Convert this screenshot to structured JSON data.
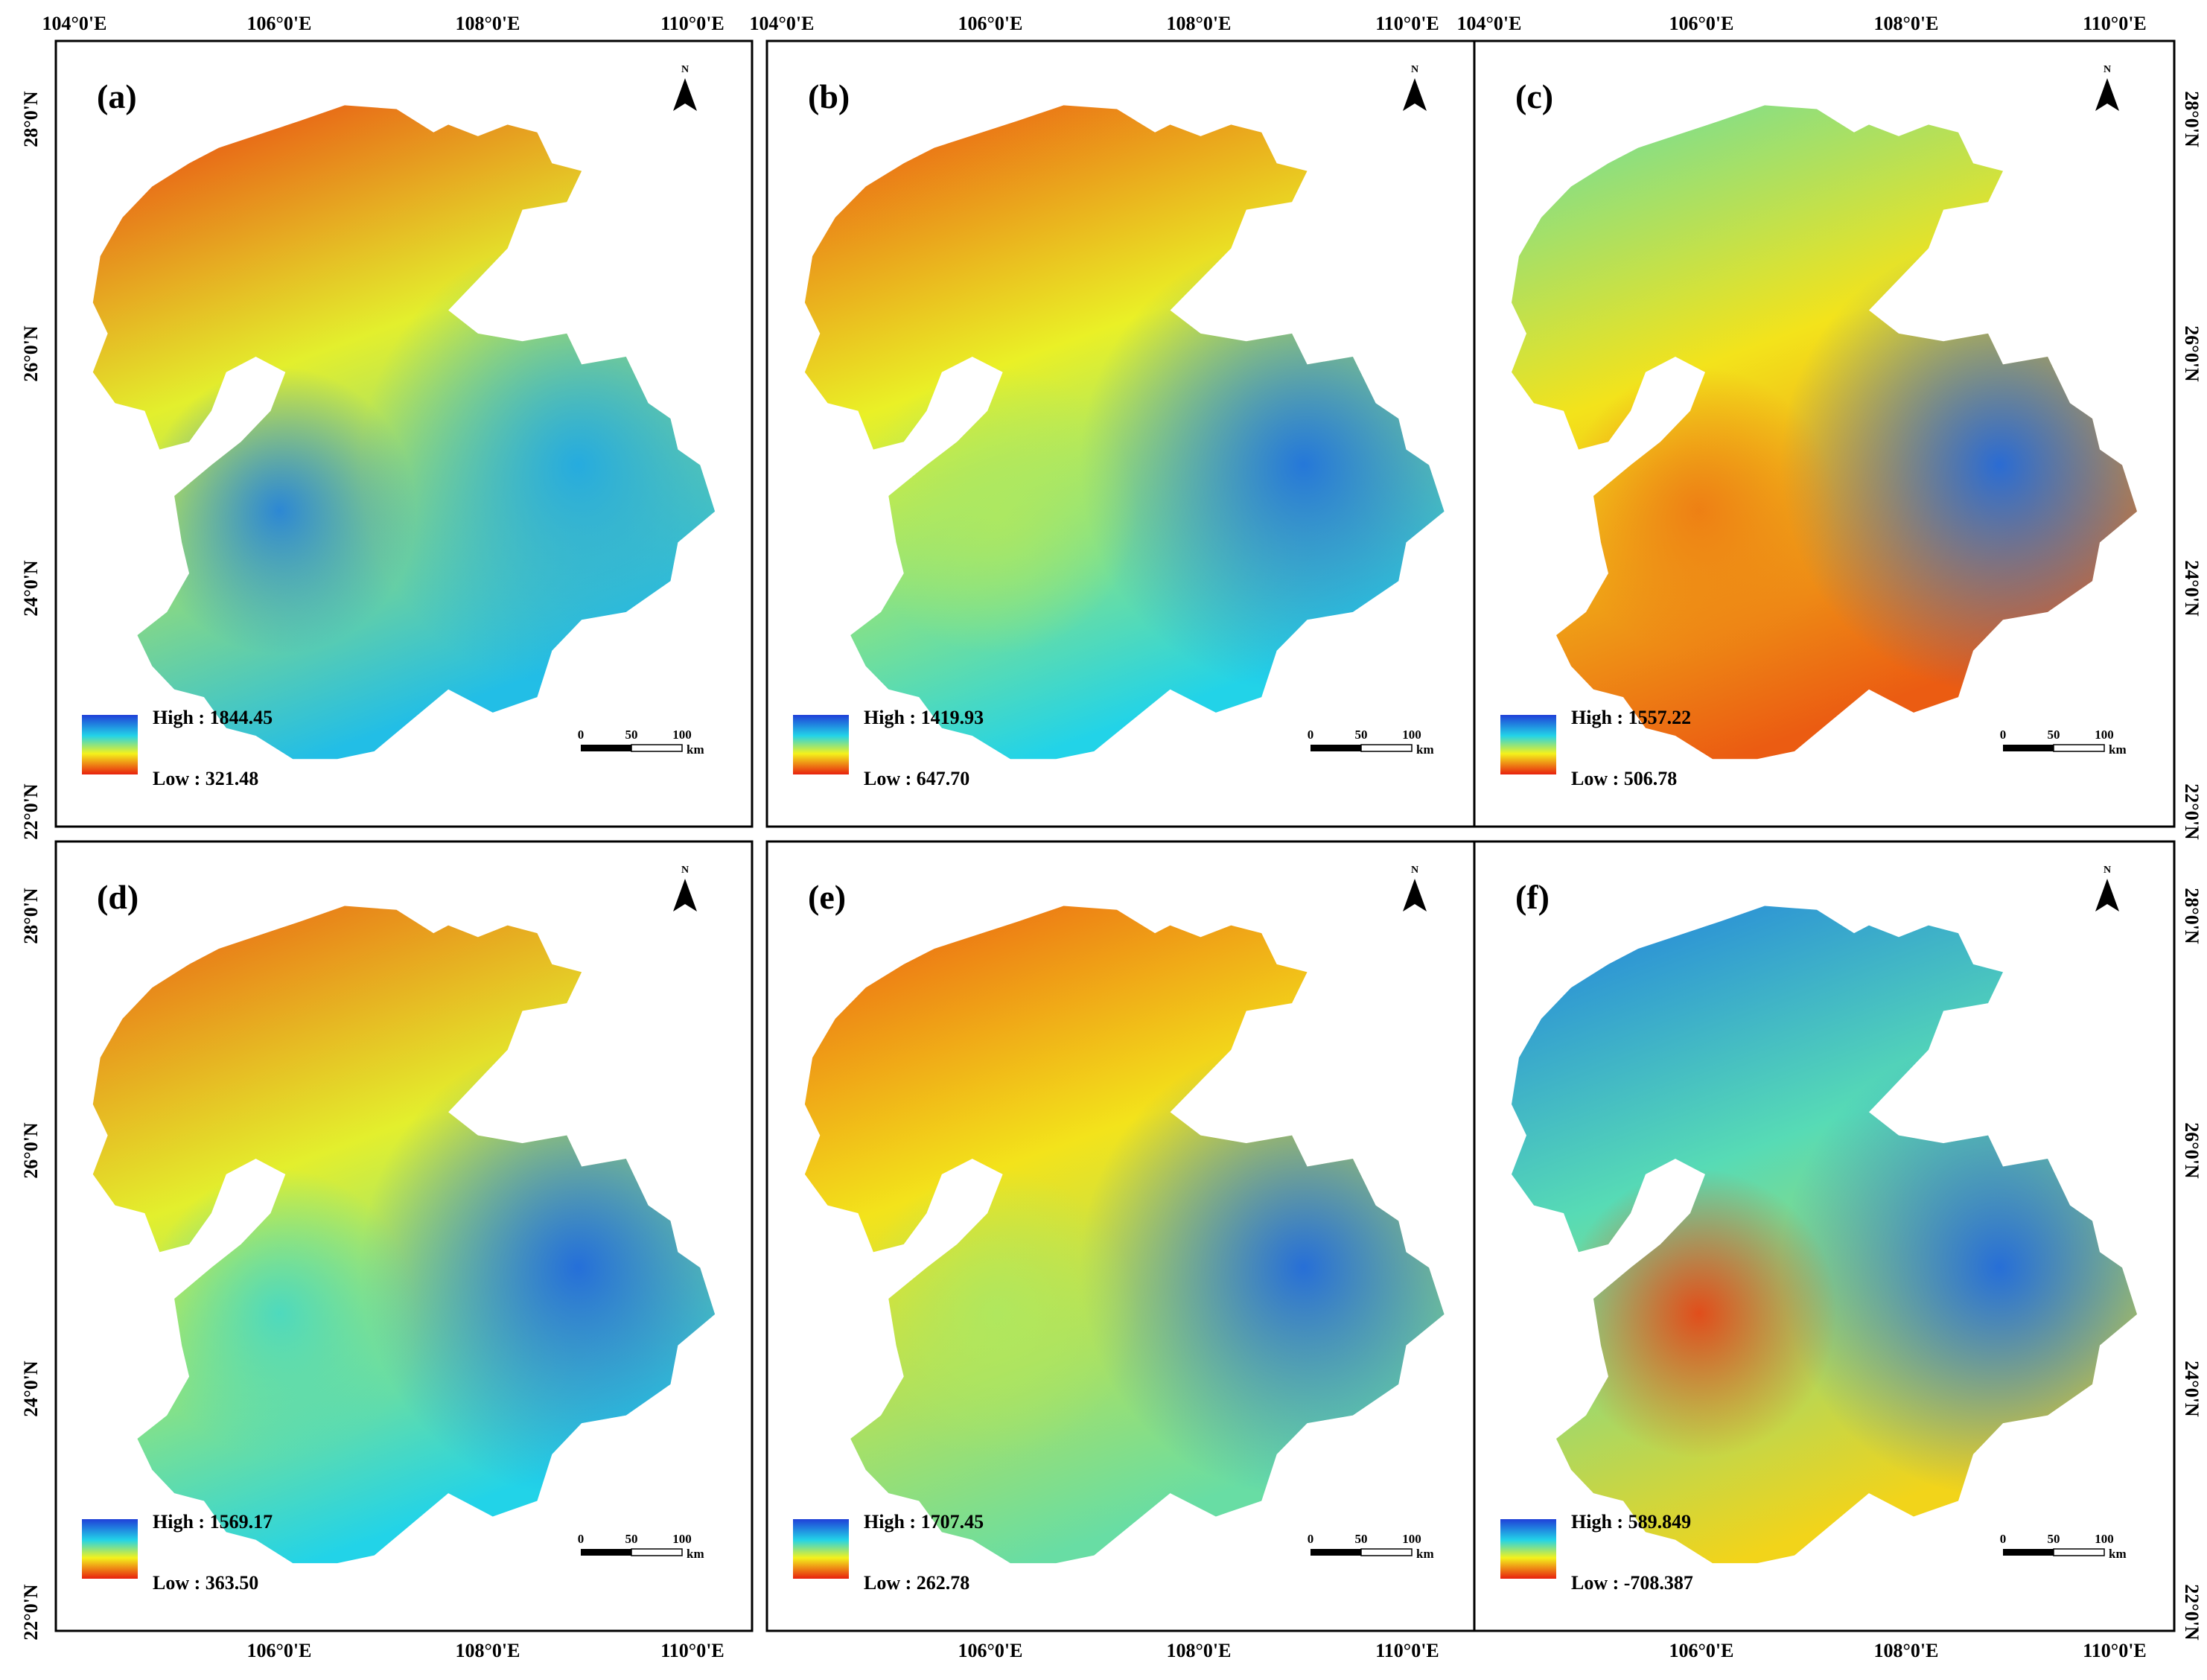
{
  "figure": {
    "top_axis_labels": [
      "104°0'E",
      "106°0'E",
      "108°0'E",
      "110°0'E"
    ],
    "bottom_axis_labels": [
      "106°0'E",
      "108°0'E",
      "110°0'E"
    ],
    "left_axis_labels": [
      "28°0'N",
      "26°0'N",
      "24°0'N",
      "22°0'N"
    ],
    "right_axis_labels": [
      "28°0'N",
      "26°0'N",
      "24°0'N",
      "22°0'N"
    ],
    "north_letter": "N",
    "scale_bar": {
      "ticks": [
        "0",
        "50",
        "100"
      ],
      "unit": "km"
    },
    "colormap": {
      "high_color": "#1f3fd8",
      "mid_color": "#22d3e8",
      "mid2_color": "#f4f21c",
      "low_color": "#e8200e"
    }
  },
  "panels": [
    {
      "label": "(a)",
      "high_text": "High : 1844.45",
      "low_text": "Low : 321.48",
      "high": 1844.45,
      "low": 321.48,
      "pattern": {
        "north": 0.95,
        "south": 0.3,
        "west_blob": 0.15,
        "east": 0.25
      }
    },
    {
      "label": "(b)",
      "high_text": "High : 1419.93",
      "low_text": "Low : 647.70",
      "high": 1419.93,
      "low": 647.7,
      "pattern": {
        "north": 0.92,
        "south": 0.35,
        "west_blob": 0.55,
        "east": 0.12
      }
    },
    {
      "label": "(c)",
      "high_text": "High : 1557.22",
      "low_text": "Low : 506.78",
      "high": 1557.22,
      "low": 506.78,
      "pattern": {
        "north": 0.45,
        "south": 0.9,
        "west_blob": 0.85,
        "east": 0.1
      }
    },
    {
      "label": "(d)",
      "high_text": "High : 1569.17",
      "low_text": "Low : 363.50",
      "high": 1569.17,
      "low": 363.5,
      "pattern": {
        "north": 0.9,
        "south": 0.35,
        "west_blob": 0.4,
        "east": 0.1
      }
    },
    {
      "label": "(e)",
      "high_text": "High : 1707.45",
      "low_text": "Low : 262.78",
      "high": 1707.45,
      "low": 262.78,
      "pattern": {
        "north": 0.9,
        "south": 0.45,
        "west_blob": 0.55,
        "east": 0.1
      }
    },
    {
      "label": "(f)",
      "high_text": "High : 589.849",
      "low_text": "Low : -708.387",
      "high": 589.849,
      "low": -708.387,
      "pattern": {
        "north": 0.15,
        "south": 0.7,
        "west_blob": 0.95,
        "east": 0.1
      }
    }
  ]
}
